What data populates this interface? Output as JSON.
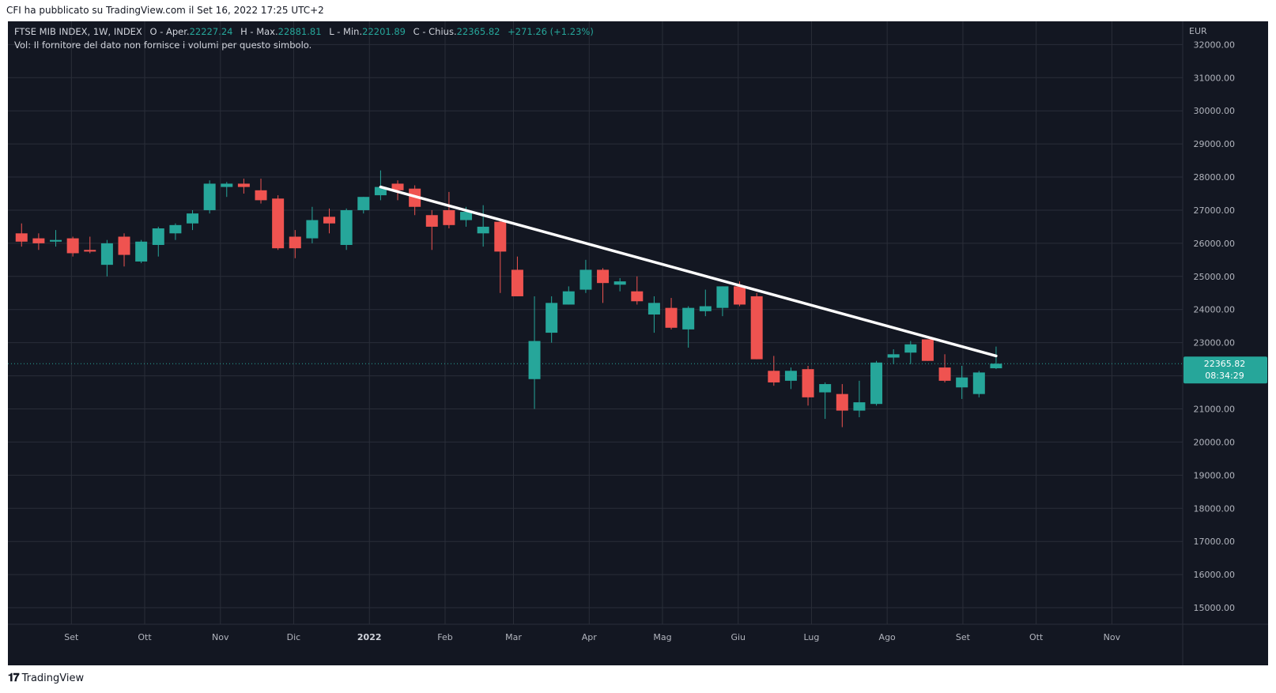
{
  "header": {
    "published": "CFI ha pubblicato su TradingView.com il Set 16, 2022 17:25 UTC+2"
  },
  "legend": {
    "symbol": "FTSE MIB INDEX, 1W, INDEX",
    "open_label": "O - Aper.",
    "open": "22227.24",
    "high_label": "H - Max.",
    "high": "22881.81",
    "low_label": "L - Min.",
    "low": "22201.89",
    "close_label": "C - Chius.",
    "close": "22365.82",
    "change": "+271.26 (+1.23%)",
    "volume_note": "Vol: Il fornitore del dato non fornisce i volumi per questo simbolo."
  },
  "price_tag": {
    "price": "22365.82",
    "countdown": "08:34:29",
    "color": "#26a69a"
  },
  "footer": {
    "brand": "TradingView",
    "logo_icon": "tradingview-logo-icon"
  },
  "colors": {
    "background": "#131722",
    "up": "#26a69a",
    "down": "#ef5350",
    "grid": "#2a2e39",
    "text": "#b2b5be",
    "trendline": "#ffffff"
  },
  "chart_data": {
    "type": "candlestick",
    "currency": "EUR",
    "y_ticks": [
      15000,
      16000,
      17000,
      18000,
      19000,
      20000,
      21000,
      22000,
      23000,
      24000,
      25000,
      26000,
      27000,
      28000,
      29000,
      30000,
      31000,
      32000
    ],
    "y_tick_labels": [
      "15000.00",
      "16000.00",
      "17000.00",
      "18000.00",
      "19000.00",
      "20000.00",
      "21000.00",
      "22000.00",
      "23000.00",
      "24000.00",
      "25000.00",
      "26000.00",
      "27000.00",
      "28000.00",
      "29000.00",
      "30000.00",
      "31000.00",
      "32000.00"
    ],
    "ylim": [
      14500,
      32700
    ],
    "x_ticks": [
      {
        "label": "Set",
        "date": "2021-09-01",
        "bold": false
      },
      {
        "label": "Ott",
        "date": "2021-10-01",
        "bold": false
      },
      {
        "label": "Nov",
        "date": "2021-11-01",
        "bold": false
      },
      {
        "label": "Dic",
        "date": "2021-12-01",
        "bold": false
      },
      {
        "label": "2022",
        "date": "2022-01-01",
        "bold": true
      },
      {
        "label": "Feb",
        "date": "2022-02-01",
        "bold": false
      },
      {
        "label": "Mar",
        "date": "2022-03-01",
        "bold": false
      },
      {
        "label": "Apr",
        "date": "2022-04-01",
        "bold": false
      },
      {
        "label": "Mag",
        "date": "2022-05-01",
        "bold": false
      },
      {
        "label": "Giu",
        "date": "2022-06-01",
        "bold": false
      },
      {
        "label": "Lug",
        "date": "2022-07-01",
        "bold": false
      },
      {
        "label": "Ago",
        "date": "2022-08-01",
        "bold": false
      },
      {
        "label": "Set",
        "date": "2022-09-01",
        "bold": false
      },
      {
        "label": "Ott",
        "date": "2022-10-01",
        "bold": false
      },
      {
        "label": "Nov",
        "date": "2022-11-01",
        "bold": false
      }
    ],
    "xlim": [
      "2021-08-06",
      "2022-11-30"
    ],
    "candles": [
      {
        "date": "2021-08-09",
        "o": 26300,
        "h": 26600,
        "l": 25900,
        "c": 26050
      },
      {
        "date": "2021-08-16",
        "o": 26150,
        "h": 26300,
        "l": 25800,
        "c": 26000
      },
      {
        "date": "2021-08-23",
        "o": 26050,
        "h": 26400,
        "l": 25900,
        "c": 26100
      },
      {
        "date": "2021-08-30",
        "o": 26150,
        "h": 26200,
        "l": 25600,
        "c": 25700
      },
      {
        "date": "2021-09-06",
        "o": 25800,
        "h": 26200,
        "l": 25700,
        "c": 25750
      },
      {
        "date": "2021-09-13",
        "o": 25350,
        "h": 26100,
        "l": 25000,
        "c": 26000
      },
      {
        "date": "2021-09-20",
        "o": 26200,
        "h": 26300,
        "l": 25300,
        "c": 25650
      },
      {
        "date": "2021-09-27",
        "o": 25450,
        "h": 26100,
        "l": 25400,
        "c": 26050
      },
      {
        "date": "2021-10-04",
        "o": 25950,
        "h": 26500,
        "l": 25600,
        "c": 26450
      },
      {
        "date": "2021-10-11",
        "o": 26300,
        "h": 26600,
        "l": 26100,
        "c": 26550
      },
      {
        "date": "2021-10-18",
        "o": 26600,
        "h": 27000,
        "l": 26400,
        "c": 26900
      },
      {
        "date": "2021-10-25",
        "o": 27000,
        "h": 27900,
        "l": 26900,
        "c": 27800
      },
      {
        "date": "2021-11-01",
        "o": 27700,
        "h": 27850,
        "l": 27400,
        "c": 27800
      },
      {
        "date": "2021-11-08",
        "o": 27800,
        "h": 27950,
        "l": 27500,
        "c": 27700
      },
      {
        "date": "2021-11-15",
        "o": 27600,
        "h": 27950,
        "l": 27200,
        "c": 27300
      },
      {
        "date": "2021-11-22",
        "o": 27350,
        "h": 27450,
        "l": 25800,
        "c": 25850
      },
      {
        "date": "2021-11-29",
        "o": 26200,
        "h": 26400,
        "l": 25550,
        "c": 25850
      },
      {
        "date": "2021-12-06",
        "o": 26150,
        "h": 27100,
        "l": 26000,
        "c": 26700
      },
      {
        "date": "2021-12-13",
        "o": 26800,
        "h": 27050,
        "l": 26300,
        "c": 26600
      },
      {
        "date": "2021-12-20",
        "o": 25950,
        "h": 27050,
        "l": 25800,
        "c": 27000
      },
      {
        "date": "2021-12-27",
        "o": 27000,
        "h": 27400,
        "l": 26900,
        "c": 27400
      },
      {
        "date": "2022-01-03",
        "o": 27450,
        "h": 28200,
        "l": 27300,
        "c": 27700
      },
      {
        "date": "2022-01-10",
        "o": 27800,
        "h": 27900,
        "l": 27300,
        "c": 27600
      },
      {
        "date": "2022-01-17",
        "o": 27650,
        "h": 27750,
        "l": 26850,
        "c": 27100
      },
      {
        "date": "2022-01-24",
        "o": 26850,
        "h": 27000,
        "l": 25800,
        "c": 26500
      },
      {
        "date": "2022-01-31",
        "o": 27000,
        "h": 27550,
        "l": 26450,
        "c": 26550
      },
      {
        "date": "2022-02-07",
        "o": 26700,
        "h": 27100,
        "l": 26500,
        "c": 26950
      },
      {
        "date": "2022-02-14",
        "o": 26300,
        "h": 27150,
        "l": 25900,
        "c": 26500
      },
      {
        "date": "2022-02-21",
        "o": 26650,
        "h": 26700,
        "l": 24500,
        "c": 25750
      },
      {
        "date": "2022-02-28",
        "o": 25200,
        "h": 25600,
        "l": 24400,
        "c": 24400
      },
      {
        "date": "2022-03-07",
        "o": 21900,
        "h": 24400,
        "l": 21000,
        "c": 23050
      },
      {
        "date": "2022-03-14",
        "o": 23300,
        "h": 24400,
        "l": 23000,
        "c": 24200
      },
      {
        "date": "2022-03-21",
        "o": 24150,
        "h": 24700,
        "l": 24150,
        "c": 24550
      },
      {
        "date": "2022-03-28",
        "o": 24600,
        "h": 25500,
        "l": 24500,
        "c": 25200
      },
      {
        "date": "2022-04-04",
        "o": 25200,
        "h": 25250,
        "l": 24200,
        "c": 24800
      },
      {
        "date": "2022-04-11",
        "o": 24750,
        "h": 24950,
        "l": 24550,
        "c": 24850
      },
      {
        "date": "2022-04-18",
        "o": 24550,
        "h": 25000,
        "l": 24150,
        "c": 24250
      },
      {
        "date": "2022-04-25",
        "o": 23850,
        "h": 24400,
        "l": 23300,
        "c": 24200
      },
      {
        "date": "2022-05-02",
        "o": 24050,
        "h": 24350,
        "l": 23400,
        "c": 23450
      },
      {
        "date": "2022-05-09",
        "o": 23400,
        "h": 24100,
        "l": 22850,
        "c": 24050
      },
      {
        "date": "2022-05-16",
        "o": 23950,
        "h": 24600,
        "l": 23800,
        "c": 24100
      },
      {
        "date": "2022-05-23",
        "o": 24050,
        "h": 24700,
        "l": 23800,
        "c": 24700
      },
      {
        "date": "2022-05-30",
        "o": 24700,
        "h": 24850,
        "l": 24100,
        "c": 24150
      },
      {
        "date": "2022-06-06",
        "o": 24400,
        "h": 24500,
        "l": 22500,
        "c": 22500
      },
      {
        "date": "2022-06-13",
        "o": 22150,
        "h": 22600,
        "l": 21700,
        "c": 21800
      },
      {
        "date": "2022-06-20",
        "o": 21850,
        "h": 22250,
        "l": 21600,
        "c": 22150
      },
      {
        "date": "2022-06-27",
        "o": 22200,
        "h": 22300,
        "l": 21100,
        "c": 21350
      },
      {
        "date": "2022-07-04",
        "o": 21500,
        "h": 21800,
        "l": 20700,
        "c": 21750
      },
      {
        "date": "2022-07-11",
        "o": 21450,
        "h": 21750,
        "l": 20450,
        "c": 20950
      },
      {
        "date": "2022-07-18",
        "o": 20950,
        "h": 21850,
        "l": 20750,
        "c": 21200
      },
      {
        "date": "2022-07-25",
        "o": 21150,
        "h": 22450,
        "l": 21100,
        "c": 22400
      },
      {
        "date": "2022-08-01",
        "o": 22550,
        "h": 22800,
        "l": 22350,
        "c": 22650
      },
      {
        "date": "2022-08-08",
        "o": 22700,
        "h": 23050,
        "l": 22350,
        "c": 22950
      },
      {
        "date": "2022-08-15",
        "o": 23100,
        "h": 23100,
        "l": 22450,
        "c": 22450
      },
      {
        "date": "2022-08-22",
        "o": 22250,
        "h": 22650,
        "l": 21800,
        "c": 21850
      },
      {
        "date": "2022-08-29",
        "o": 21650,
        "h": 22300,
        "l": 21300,
        "c": 21950
      },
      {
        "date": "2022-09-05",
        "o": 21450,
        "h": 22150,
        "l": 21350,
        "c": 22100
      },
      {
        "date": "2022-09-12",
        "o": 22227.24,
        "h": 22881.81,
        "l": 22201.89,
        "c": 22365.82
      }
    ],
    "trendline": [
      {
        "date": "2022-01-03",
        "value": 27700
      },
      {
        "date": "2022-09-12",
        "value": 22600
      }
    ],
    "last_price": 22365.82
  }
}
